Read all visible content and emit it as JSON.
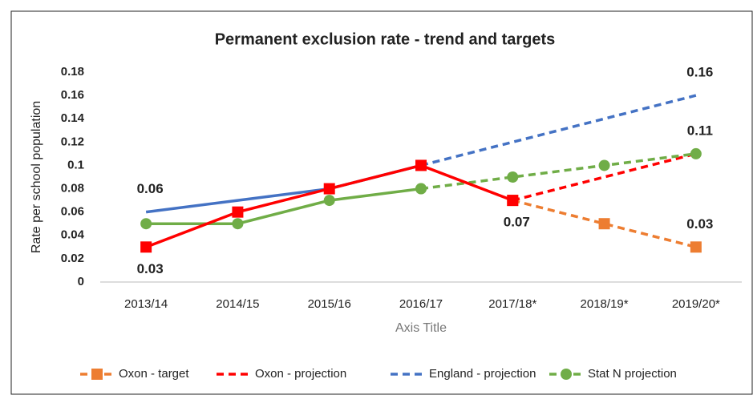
{
  "chart_data": {
    "type": "line",
    "title": "Permanent exclusion rate - trend and targets",
    "y_axis_title": "Rate per school population",
    "x_axis_title": "Axis Title",
    "categories": [
      "2013/14",
      "2014/15",
      "2015/16",
      "2016/17",
      "2017/18*",
      "2018/19*",
      "2019/20*"
    ],
    "ylim": [
      0,
      0.18
    ],
    "yticks": [
      0,
      0.02,
      0.04,
      0.06,
      0.08,
      0.1,
      0.12,
      0.14,
      0.16,
      0.18
    ],
    "legend": "bottom",
    "series": [
      {
        "name": "Oxon - target",
        "color": "#ed7d31",
        "dashed": true,
        "marker": "square",
        "values": [
          null,
          null,
          null,
          null,
          0.07,
          0.05,
          0.03
        ],
        "labeled": [
          6
        ],
        "label_position": "above"
      },
      {
        "name": "Oxon - projection",
        "color": "#ff0000",
        "dashed": true,
        "marker": "none",
        "values": [
          null,
          null,
          null,
          null,
          0.07,
          0.09,
          0.11
        ],
        "labeled": [],
        "label_position": "above"
      },
      {
        "name": "England - projection",
        "color": "#4472c4",
        "dashed": true,
        "marker": "none",
        "values": [
          null,
          null,
          null,
          0.1,
          0.12,
          0.14,
          0.16
        ],
        "labeled": [
          6
        ],
        "label_position": "above"
      },
      {
        "name": "Stat N projection",
        "color": "#70ad47",
        "dashed": true,
        "marker": "circle",
        "values": [
          null,
          null,
          null,
          0.08,
          0.09,
          0.1,
          0.11
        ],
        "labeled": [
          6
        ],
        "label_position": "above"
      },
      {
        "color": "#4472c4",
        "dashed": false,
        "marker": "none",
        "values": [
          0.06,
          0.07,
          0.08,
          0.1,
          null,
          null,
          null
        ],
        "labeled": [
          0
        ],
        "label_position": "above"
      },
      {
        "color": "#70ad47",
        "dashed": false,
        "marker": "circle",
        "values": [
          0.05,
          0.05,
          0.07,
          0.08,
          null,
          null,
          null
        ],
        "labeled": [],
        "label_position": "above"
      },
      {
        "color": "#ff0000",
        "dashed": false,
        "marker": "square",
        "values": [
          0.03,
          0.06,
          0.08,
          0.1,
          0.07,
          null,
          null
        ],
        "labeled": [
          0,
          4
        ],
        "label_position": "below"
      }
    ]
  }
}
